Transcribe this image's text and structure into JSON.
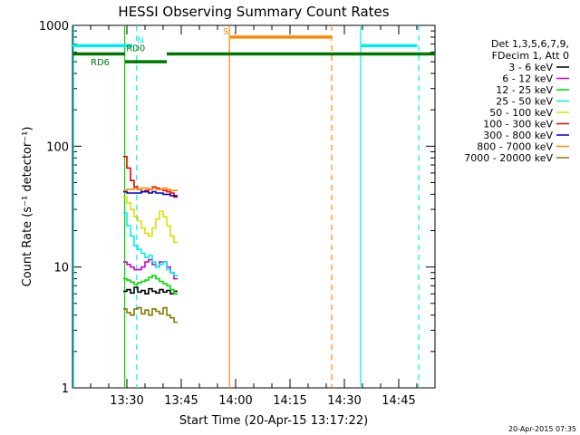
{
  "chart_data": {
    "type": "line",
    "title": "HESSI Observing Summary Count Rates",
    "xlabel": "Start Time (20-Apr-15 13:17:22)",
    "ylabel": "Count Rate (s⁻¹ detector⁻¹)",
    "y_scale": "log",
    "xlim_minutes": [
      795,
      895
    ],
    "ylim": [
      1,
      1000
    ],
    "x_ticks": [
      {
        "value": 810,
        "label": "13:30"
      },
      {
        "value": 825,
        "label": "13:45"
      },
      {
        "value": 840,
        "label": "14:00"
      },
      {
        "value": 855,
        "label": "14:15"
      },
      {
        "value": 870,
        "label": "14:30"
      },
      {
        "value": 885,
        "label": "14:45"
      }
    ],
    "y_ticks": [
      {
        "value": 1,
        "label": "1"
      },
      {
        "value": 10,
        "label": "10"
      },
      {
        "value": 100,
        "label": "100"
      },
      {
        "value": 1000,
        "label": "1000"
      }
    ],
    "legend": {
      "placement": "right",
      "header": [
        "Det 1,3,5,6,7,9,",
        "FDecim 1, Att 0"
      ],
      "entries": [
        {
          "label": "3 - 6 keV",
          "color": "#000000"
        },
        {
          "label": "6 - 12 keV",
          "color": "#cc00cc"
        },
        {
          "label": "12 - 25 keV",
          "color": "#00dd00"
        },
        {
          "label": "25 - 50 keV",
          "color": "#00eeee"
        },
        {
          "label": "50 - 100 keV",
          "color": "#dddd00"
        },
        {
          "label": "100 - 300 keV",
          "color": "#ee0000"
        },
        {
          "label": "300 - 800 keV",
          "color": "#0000cc"
        },
        {
          "label": "800 - 7000 keV",
          "color": "#ff8800"
        },
        {
          "label": "7000 - 20000 keV",
          "color": "#887700"
        }
      ]
    },
    "series": [
      {
        "name": "3 - 6 keV",
        "color": "#000000",
        "x": [
          809.5,
          810.5,
          811.5,
          812.5,
          813.5,
          814.5,
          815.5,
          816.5,
          817.5,
          818.5,
          819.5,
          820.5,
          821.5,
          822.5,
          823.5
        ],
        "y": [
          6.3,
          6.5,
          6.1,
          6.8,
          6.2,
          6.4,
          6.0,
          6.6,
          6.3,
          6.1,
          6.5,
          6.2,
          6.4,
          6.0,
          6.3
        ]
      },
      {
        "name": "6 - 12 keV",
        "color": "#cc00cc",
        "x": [
          809.5,
          810.5,
          811.5,
          812.5,
          813.5,
          814.5,
          815.5,
          816.5,
          817.5,
          818.5,
          819.5,
          820.5,
          821.5,
          822.5,
          823.5
        ],
        "y": [
          11,
          10.5,
          10,
          9.5,
          9.5,
          10,
          11,
          11.5,
          10.5,
          10,
          11,
          11,
          10,
          9,
          8
        ]
      },
      {
        "name": "12 - 25 keV",
        "color": "#00dd00",
        "x": [
          809.5,
          810.5,
          811.5,
          812.5,
          813.5,
          814.5,
          815.5,
          816.5,
          817.5,
          818.5,
          819.5,
          820.5,
          821.5,
          822.5,
          823.5
        ],
        "y": [
          8,
          7.8,
          7.5,
          7.2,
          7.4,
          7.6,
          7.8,
          8.2,
          8.5,
          8.0,
          7.6,
          7.3,
          7.0,
          6.5,
          6.0
        ]
      },
      {
        "name": "25 - 50 keV",
        "color": "#00eeee",
        "x": [
          809.5,
          810.5,
          811.5,
          812.5,
          813.5,
          814.5,
          815.5,
          816.5,
          817.5,
          818.5,
          819.5,
          820.5,
          821.5,
          822.5,
          823.5
        ],
        "y": [
          28,
          22,
          18,
          15,
          14,
          13,
          12,
          12.5,
          11,
          10,
          10.5,
          11,
          9.5,
          9,
          8.5
        ]
      },
      {
        "name": "50 - 100 keV",
        "color": "#dddd00",
        "x": [
          809.5,
          810.5,
          811.5,
          812.5,
          813.5,
          814.5,
          815.5,
          816.5,
          817.5,
          818.5,
          819.5,
          820.5,
          821.5,
          822.5,
          823.5
        ],
        "y": [
          38,
          34,
          30,
          26,
          24,
          21,
          19,
          18,
          21,
          25,
          29,
          26,
          22,
          18,
          16
        ]
      },
      {
        "name": "100 - 300 keV",
        "color": "#ee0000",
        "x": [
          809.5,
          810.5,
          811.5,
          812.5,
          813.5,
          814.5,
          815.5,
          816.5,
          817.5,
          818.5,
          819.5,
          820.5,
          821.5,
          822.5,
          823.5
        ],
        "y": [
          82,
          66,
          52,
          46,
          44,
          42,
          43,
          44,
          46,
          45,
          44,
          43,
          42,
          41,
          38
        ]
      },
      {
        "name": "300 - 800 keV",
        "color": "#0000cc",
        "x": [
          809.5,
          810.5,
          811.5,
          812.5,
          813.5,
          814.5,
          815.5,
          816.5,
          817.5,
          818.5,
          819.5,
          820.5,
          821.5,
          822.5,
          823.5
        ],
        "y": [
          42,
          41,
          41,
          41,
          41,
          42,
          42,
          41,
          42,
          41,
          41,
          40,
          40,
          39,
          39
        ]
      },
      {
        "name": "800 - 7000 keV",
        "color": "#ff8800",
        "x": [
          809.5,
          810.5,
          811.5,
          812.5,
          813.5,
          814.5,
          815.5,
          816.5,
          817.5,
          818.5,
          819.5,
          820.5,
          821.5,
          822.5,
          823.5
        ],
        "y": [
          43,
          44,
          44,
          45,
          44,
          45,
          45,
          44,
          45,
          44,
          44,
          45,
          44,
          43,
          43
        ]
      },
      {
        "name": "7000 - 20000 keV",
        "color": "#887700",
        "x": [
          809.5,
          810.5,
          811.5,
          812.5,
          813.5,
          814.5,
          815.5,
          816.5,
          817.5,
          818.5,
          819.5,
          820.5,
          821.5,
          822.5,
          823.5
        ],
        "y": [
          4.5,
          4.2,
          4.0,
          4.5,
          4.6,
          4.1,
          4.4,
          4.0,
          4.5,
          4.3,
          4.1,
          4.6,
          4.0,
          3.8,
          3.5
        ]
      }
    ],
    "vertical_markers": [
      {
        "x": 795.3,
        "color": "#00eeee",
        "style": "solid"
      },
      {
        "x": 812.7,
        "color": "#00eeee",
        "style": "dashed"
      },
      {
        "x": 809.4,
        "color": "#00dd00",
        "style": "solid"
      },
      {
        "x": 838.3,
        "color": "#ff8800",
        "style": "solid"
      },
      {
        "x": 866.5,
        "color": "#ff8800",
        "style": "dashed"
      },
      {
        "x": 874.5,
        "color": "#00eeee",
        "style": "solid"
      },
      {
        "x": 890.5,
        "color": "#00eeee",
        "style": "dashed"
      }
    ],
    "status_bars": [
      {
        "label": "N",
        "color": "#00eeee",
        "y": 680,
        "x_start": 795,
        "x_end": 811.5,
        "label_x": 812.8
      },
      {
        "label": "N",
        "color": "#00eeee",
        "y": 680,
        "x_start": 874.5,
        "x_end": 890,
        "label_x": null
      },
      {
        "label": "RD0",
        "color": "#007700",
        "y": 580,
        "x_start": 795,
        "x_end": 809.5,
        "label_x": 809.8
      },
      {
        "label": "RD0",
        "color": "#007700",
        "y": 580,
        "x_start": 821,
        "x_end": 895,
        "label_x": null
      },
      {
        "label": "RD6",
        "color": "#007700",
        "y": 500,
        "x_start": 809.5,
        "x_end": 821,
        "label_x": 800
      },
      {
        "label": "S",
        "color": "#ff8800",
        "y": 800,
        "x_start": 838.5,
        "x_end": 866.5,
        "label_x": 836.5
      }
    ]
  },
  "footer": {
    "timestamp": "20-Apr-2015 07:35"
  }
}
